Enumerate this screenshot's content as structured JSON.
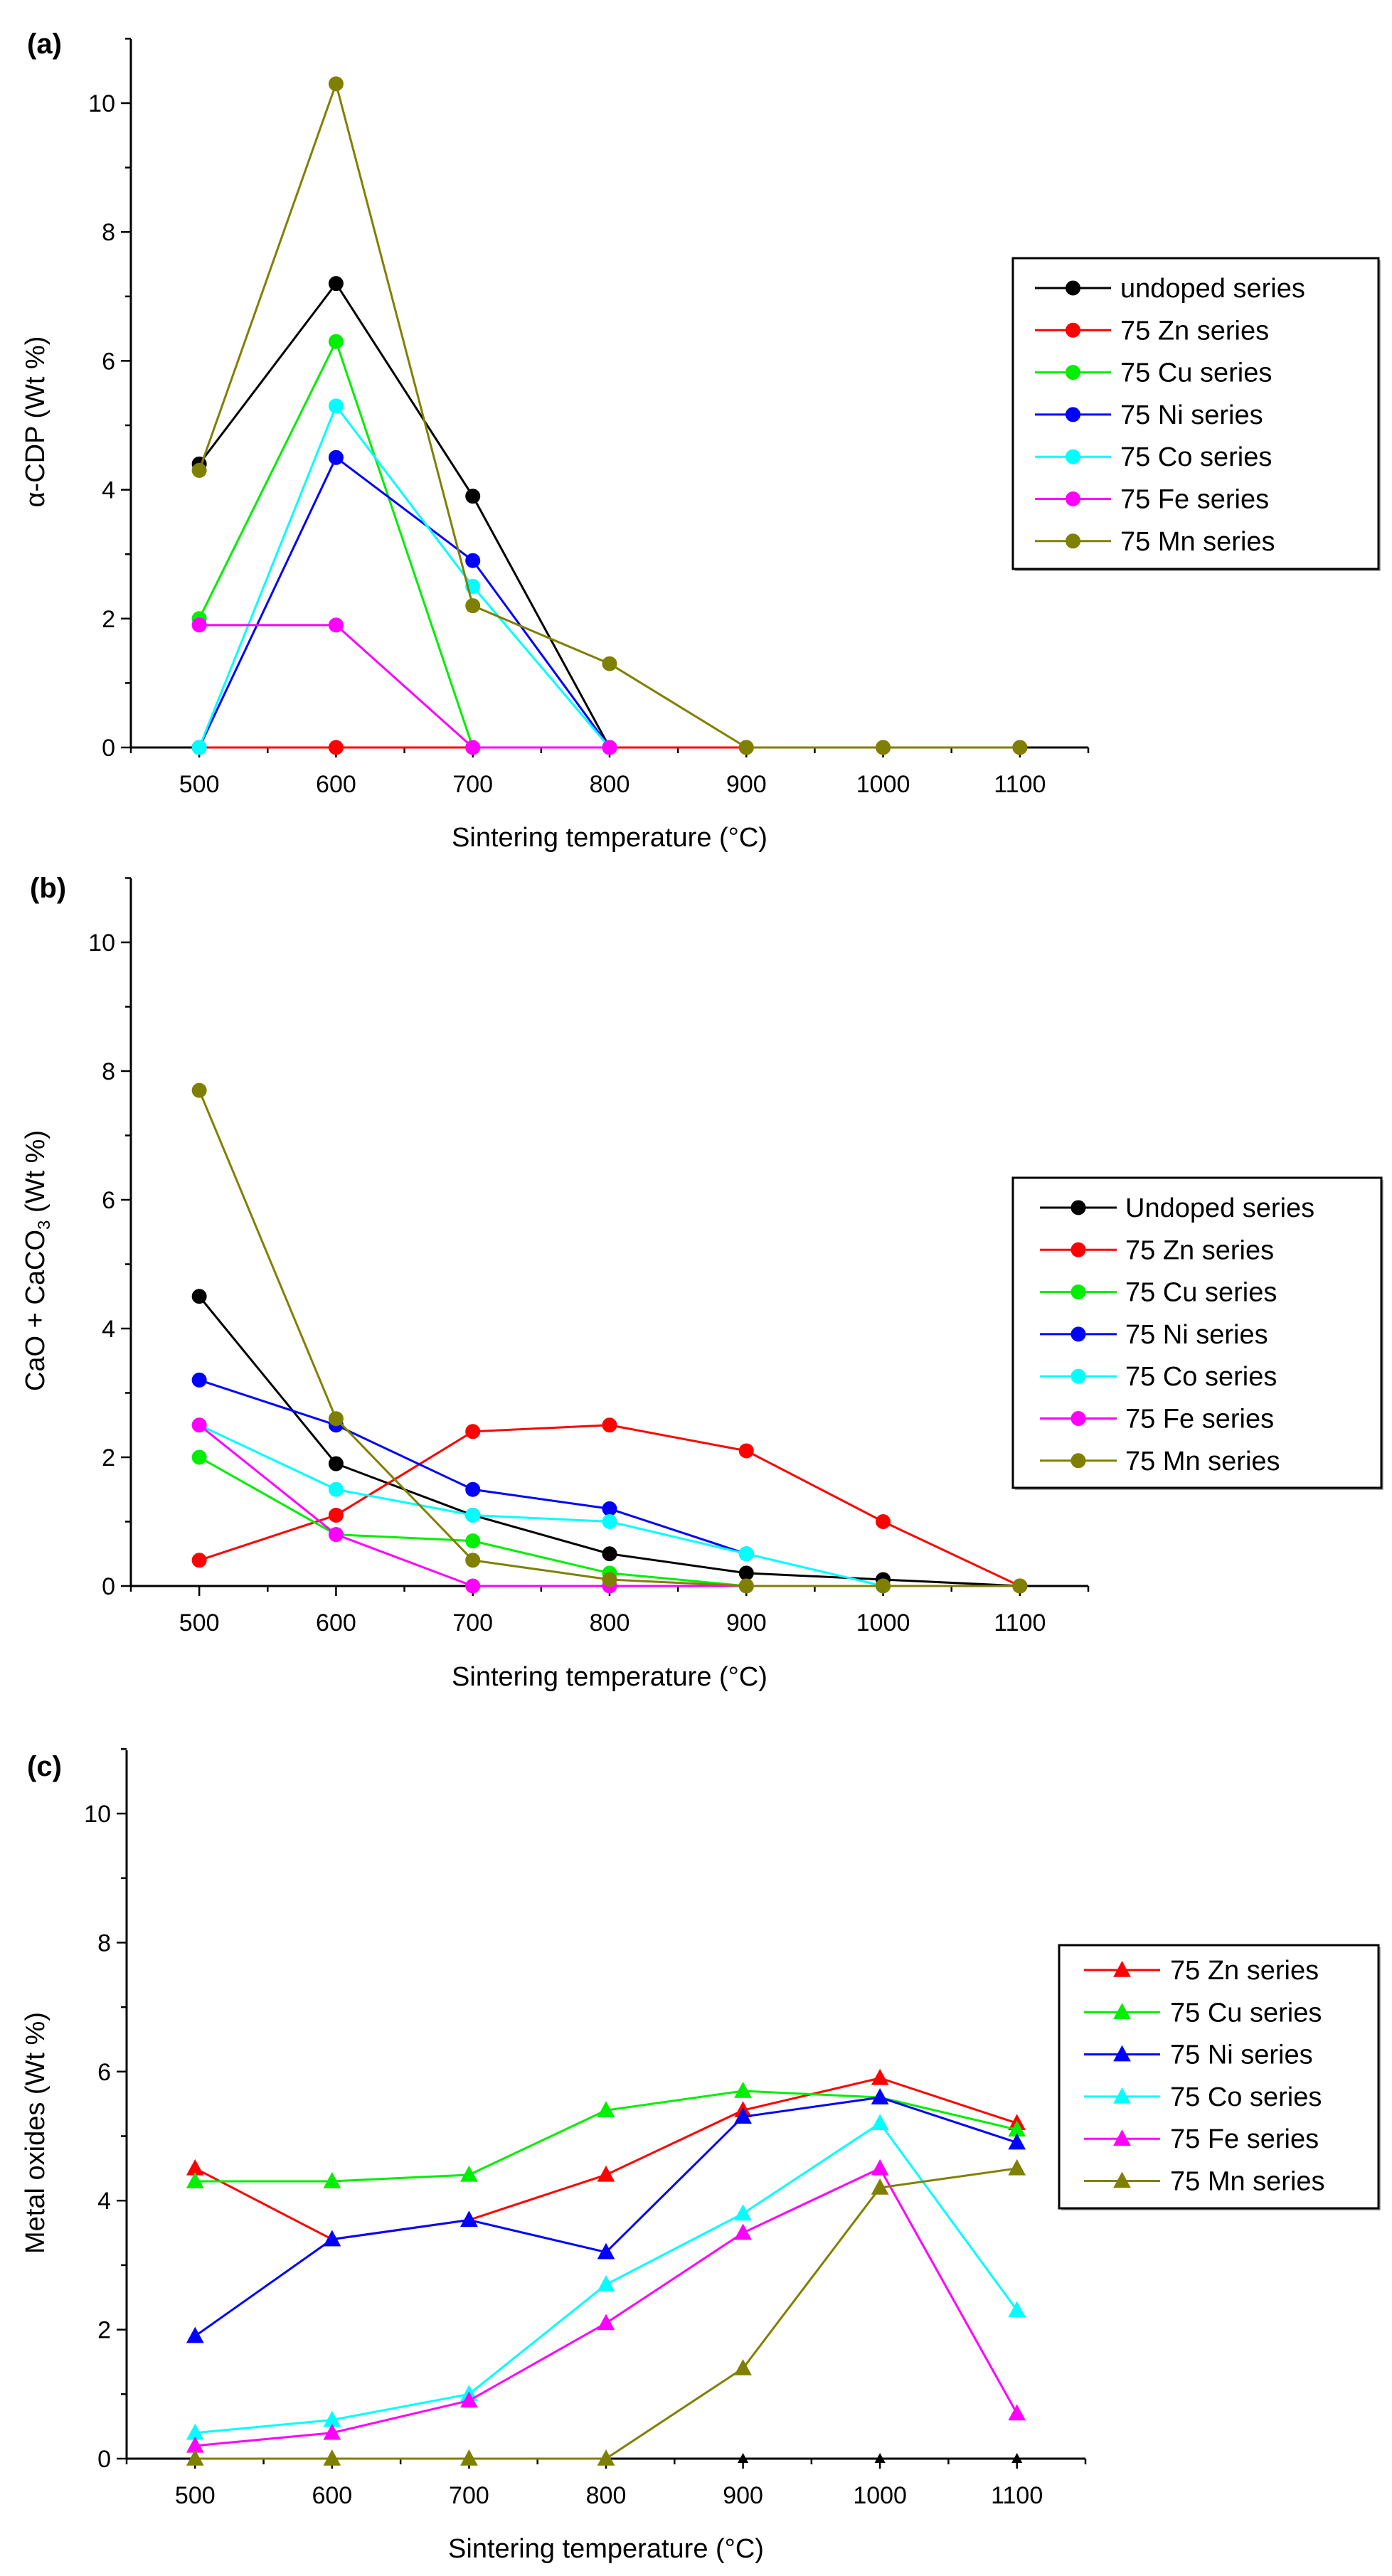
{
  "chart_data": [
    {
      "type": "line",
      "panel_label": "(a)",
      "title": "",
      "xlabel": "Sintering temperature (°C)",
      "ylabel": "α-CDP (Wt %)",
      "xlim": [
        450,
        1150
      ],
      "ylim": [
        0,
        11
      ],
      "xticks": [
        500,
        600,
        700,
        800,
        900,
        1000,
        1100
      ],
      "yticks": [
        0,
        2,
        4,
        6,
        8,
        10
      ],
      "marker": "circle",
      "legend_position": "right",
      "series": [
        {
          "name": "undoped series",
          "color": "#000000",
          "x": [
            500,
            600,
            700,
            800
          ],
          "values": [
            4.4,
            7.2,
            3.9,
            0
          ]
        },
        {
          "name": "75 Zn series",
          "color": "#ff0000",
          "x": [
            500,
            600,
            700,
            800,
            900,
            1000,
            1100
          ],
          "values": [
            0,
            0,
            0,
            0,
            0,
            0,
            0
          ]
        },
        {
          "name": "75 Cu series",
          "color": "#00ee00",
          "x": [
            500,
            600,
            700,
            800
          ],
          "values": [
            2.0,
            6.3,
            0,
            0
          ]
        },
        {
          "name": "75 Ni series",
          "color": "#0000ff",
          "x": [
            500,
            600,
            700,
            800
          ],
          "values": [
            0,
            4.5,
            2.9,
            0
          ]
        },
        {
          "name": "75 Co series",
          "color": "#00ffff",
          "x": [
            500,
            600,
            700,
            800
          ],
          "values": [
            0,
            5.3,
            2.5,
            0
          ]
        },
        {
          "name": "75 Fe series",
          "color": "#ff00ff",
          "x": [
            500,
            600,
            700,
            800
          ],
          "values": [
            1.9,
            1.9,
            0,
            0
          ]
        },
        {
          "name": "75 Mn series",
          "color": "#808000",
          "x": [
            500,
            600,
            700,
            800,
            900,
            1000,
            1100
          ],
          "values": [
            4.3,
            10.3,
            2.2,
            1.3,
            0,
            0,
            0
          ]
        }
      ]
    },
    {
      "type": "line",
      "panel_label": "(b)",
      "title": "",
      "xlabel": "Sintering temperature (°C)",
      "ylabel": "CaO + CaCO",
      "ylabel_subscript": "3",
      "ylabel_suffix": " (Wt %)",
      "xlim": [
        450,
        1150
      ],
      "ylim": [
        0,
        11
      ],
      "xticks": [
        500,
        600,
        700,
        800,
        900,
        1000,
        1100
      ],
      "yticks": [
        0,
        2,
        4,
        6,
        8,
        10
      ],
      "marker": "circle",
      "legend_position": "right",
      "series": [
        {
          "name": "Undoped series",
          "color": "#000000",
          "x": [
            500,
            600,
            700,
            800,
            900,
            1000,
            1100
          ],
          "values": [
            4.5,
            1.9,
            1.1,
            0.5,
            0.2,
            0.1,
            0
          ]
        },
        {
          "name": "75 Zn series",
          "color": "#ff0000",
          "x": [
            500,
            600,
            700,
            800,
            900,
            1000,
            1100
          ],
          "values": [
            0.4,
            1.1,
            2.4,
            2.5,
            2.1,
            1.0,
            0
          ]
        },
        {
          "name": "75 Cu series",
          "color": "#00ee00",
          "x": [
            500,
            600,
            700,
            800,
            900
          ],
          "values": [
            2.0,
            0.8,
            0.7,
            0.2,
            0
          ]
        },
        {
          "name": "75 Ni series",
          "color": "#0000ff",
          "x": [
            500,
            600,
            700,
            800,
            900
          ],
          "values": [
            3.2,
            2.5,
            1.5,
            1.2,
            0.5
          ]
        },
        {
          "name": "75 Co series",
          "color": "#00ffff",
          "x": [
            500,
            600,
            700,
            800,
            900,
            1000
          ],
          "values": [
            2.5,
            1.5,
            1.1,
            1.0,
            0.5,
            0
          ]
        },
        {
          "name": "75 Fe series",
          "color": "#ff00ff",
          "x": [
            500,
            600,
            700,
            800,
            900
          ],
          "values": [
            2.5,
            0.8,
            0,
            0,
            0
          ]
        },
        {
          "name": "75 Mn series",
          "color": "#808000",
          "x": [
            500,
            600,
            700,
            800,
            900,
            1000,
            1100
          ],
          "values": [
            7.7,
            2.6,
            0.4,
            0.1,
            0,
            0,
            0
          ]
        }
      ]
    },
    {
      "type": "line",
      "panel_label": "(c)",
      "title": "",
      "xlabel": "Sintering temperature (°C)",
      "ylabel": "Metal oxides (Wt %)",
      "xlim": [
        450,
        1150
      ],
      "ylim": [
        0,
        11
      ],
      "xticks": [
        500,
        600,
        700,
        800,
        900,
        1000,
        1100
      ],
      "yticks": [
        0,
        2,
        4,
        6,
        8,
        10
      ],
      "marker": "triangle",
      "legend_position": "right",
      "series": [
        {
          "name": "75 Zn series",
          "color": "#ff0000",
          "x": [
            500,
            600,
            700,
            800,
            900,
            1000,
            1100
          ],
          "values": [
            4.5,
            3.4,
            3.7,
            4.4,
            5.4,
            5.9,
            5.2
          ]
        },
        {
          "name": "75 Cu series",
          "color": "#00ee00",
          "x": [
            500,
            600,
            700,
            800,
            900,
            1000,
            1100
          ],
          "values": [
            4.3,
            4.3,
            4.4,
            5.4,
            5.7,
            5.6,
            5.1
          ]
        },
        {
          "name": "75 Ni series",
          "color": "#0000ff",
          "x": [
            500,
            600,
            700,
            800,
            900,
            1000,
            1100
          ],
          "values": [
            1.9,
            3.4,
            3.7,
            3.2,
            5.3,
            5.6,
            4.9
          ]
        },
        {
          "name": "75 Co series",
          "color": "#00ffff",
          "x": [
            500,
            600,
            700,
            800,
            900,
            1000,
            1100
          ],
          "values": [
            0.4,
            0.6,
            1.0,
            2.7,
            3.8,
            5.2,
            2.3
          ]
        },
        {
          "name": "75 Fe series",
          "color": "#ff00ff",
          "x": [
            500,
            600,
            700,
            800,
            900,
            1000,
            1100
          ],
          "values": [
            0.2,
            0.4,
            0.9,
            2.1,
            3.5,
            4.5,
            0.7
          ]
        },
        {
          "name": "75 Mn series",
          "color": "#808000",
          "x": [
            500,
            600,
            700,
            800,
            900,
            1000,
            1100
          ],
          "values": [
            0,
            0,
            0,
            0,
            1.4,
            4.2,
            4.5
          ]
        },
        {
          "name": "",
          "color": "#000000",
          "x": [
            900,
            1000,
            1100
          ],
          "values": [
            0,
            0,
            0
          ],
          "no_line": true,
          "small": true,
          "in_legend": false
        }
      ]
    }
  ]
}
